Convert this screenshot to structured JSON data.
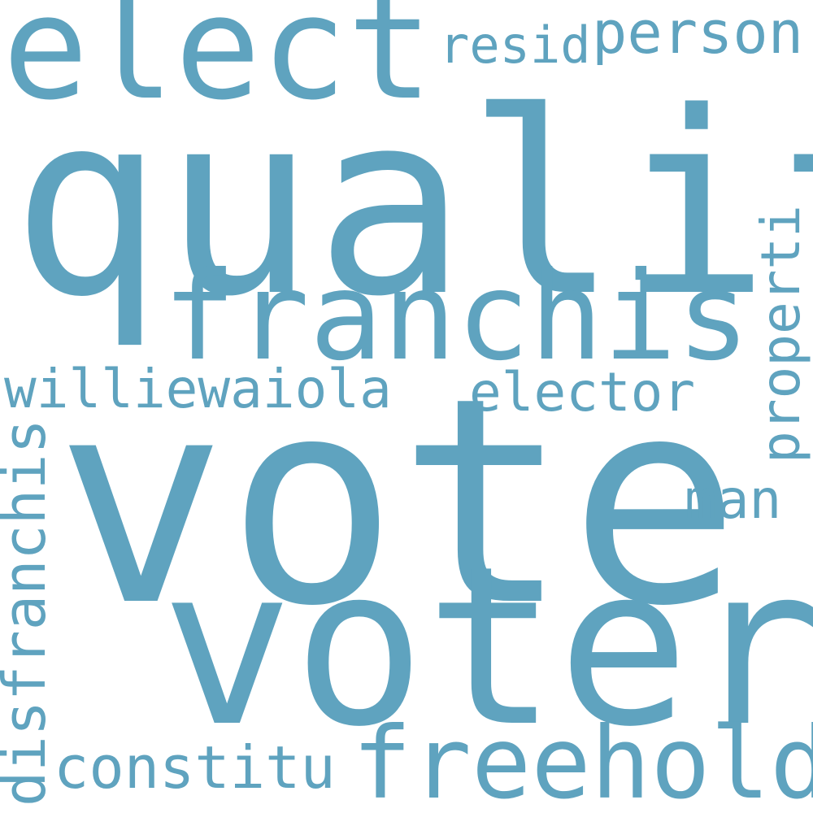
{
  "color": "#5fa3bf",
  "words": {
    "qualif": "qualif",
    "vote": "vote",
    "voter": "voter",
    "elect": "elect",
    "franchis": "franchis",
    "freehold": "freehold",
    "williewaiola": "williewaiola",
    "elector": "elector",
    "disfranchis": "disfranchis",
    "constitu": "constitu",
    "properti": "properti",
    "person": "person",
    "resid": "resid",
    "man": "man"
  }
}
